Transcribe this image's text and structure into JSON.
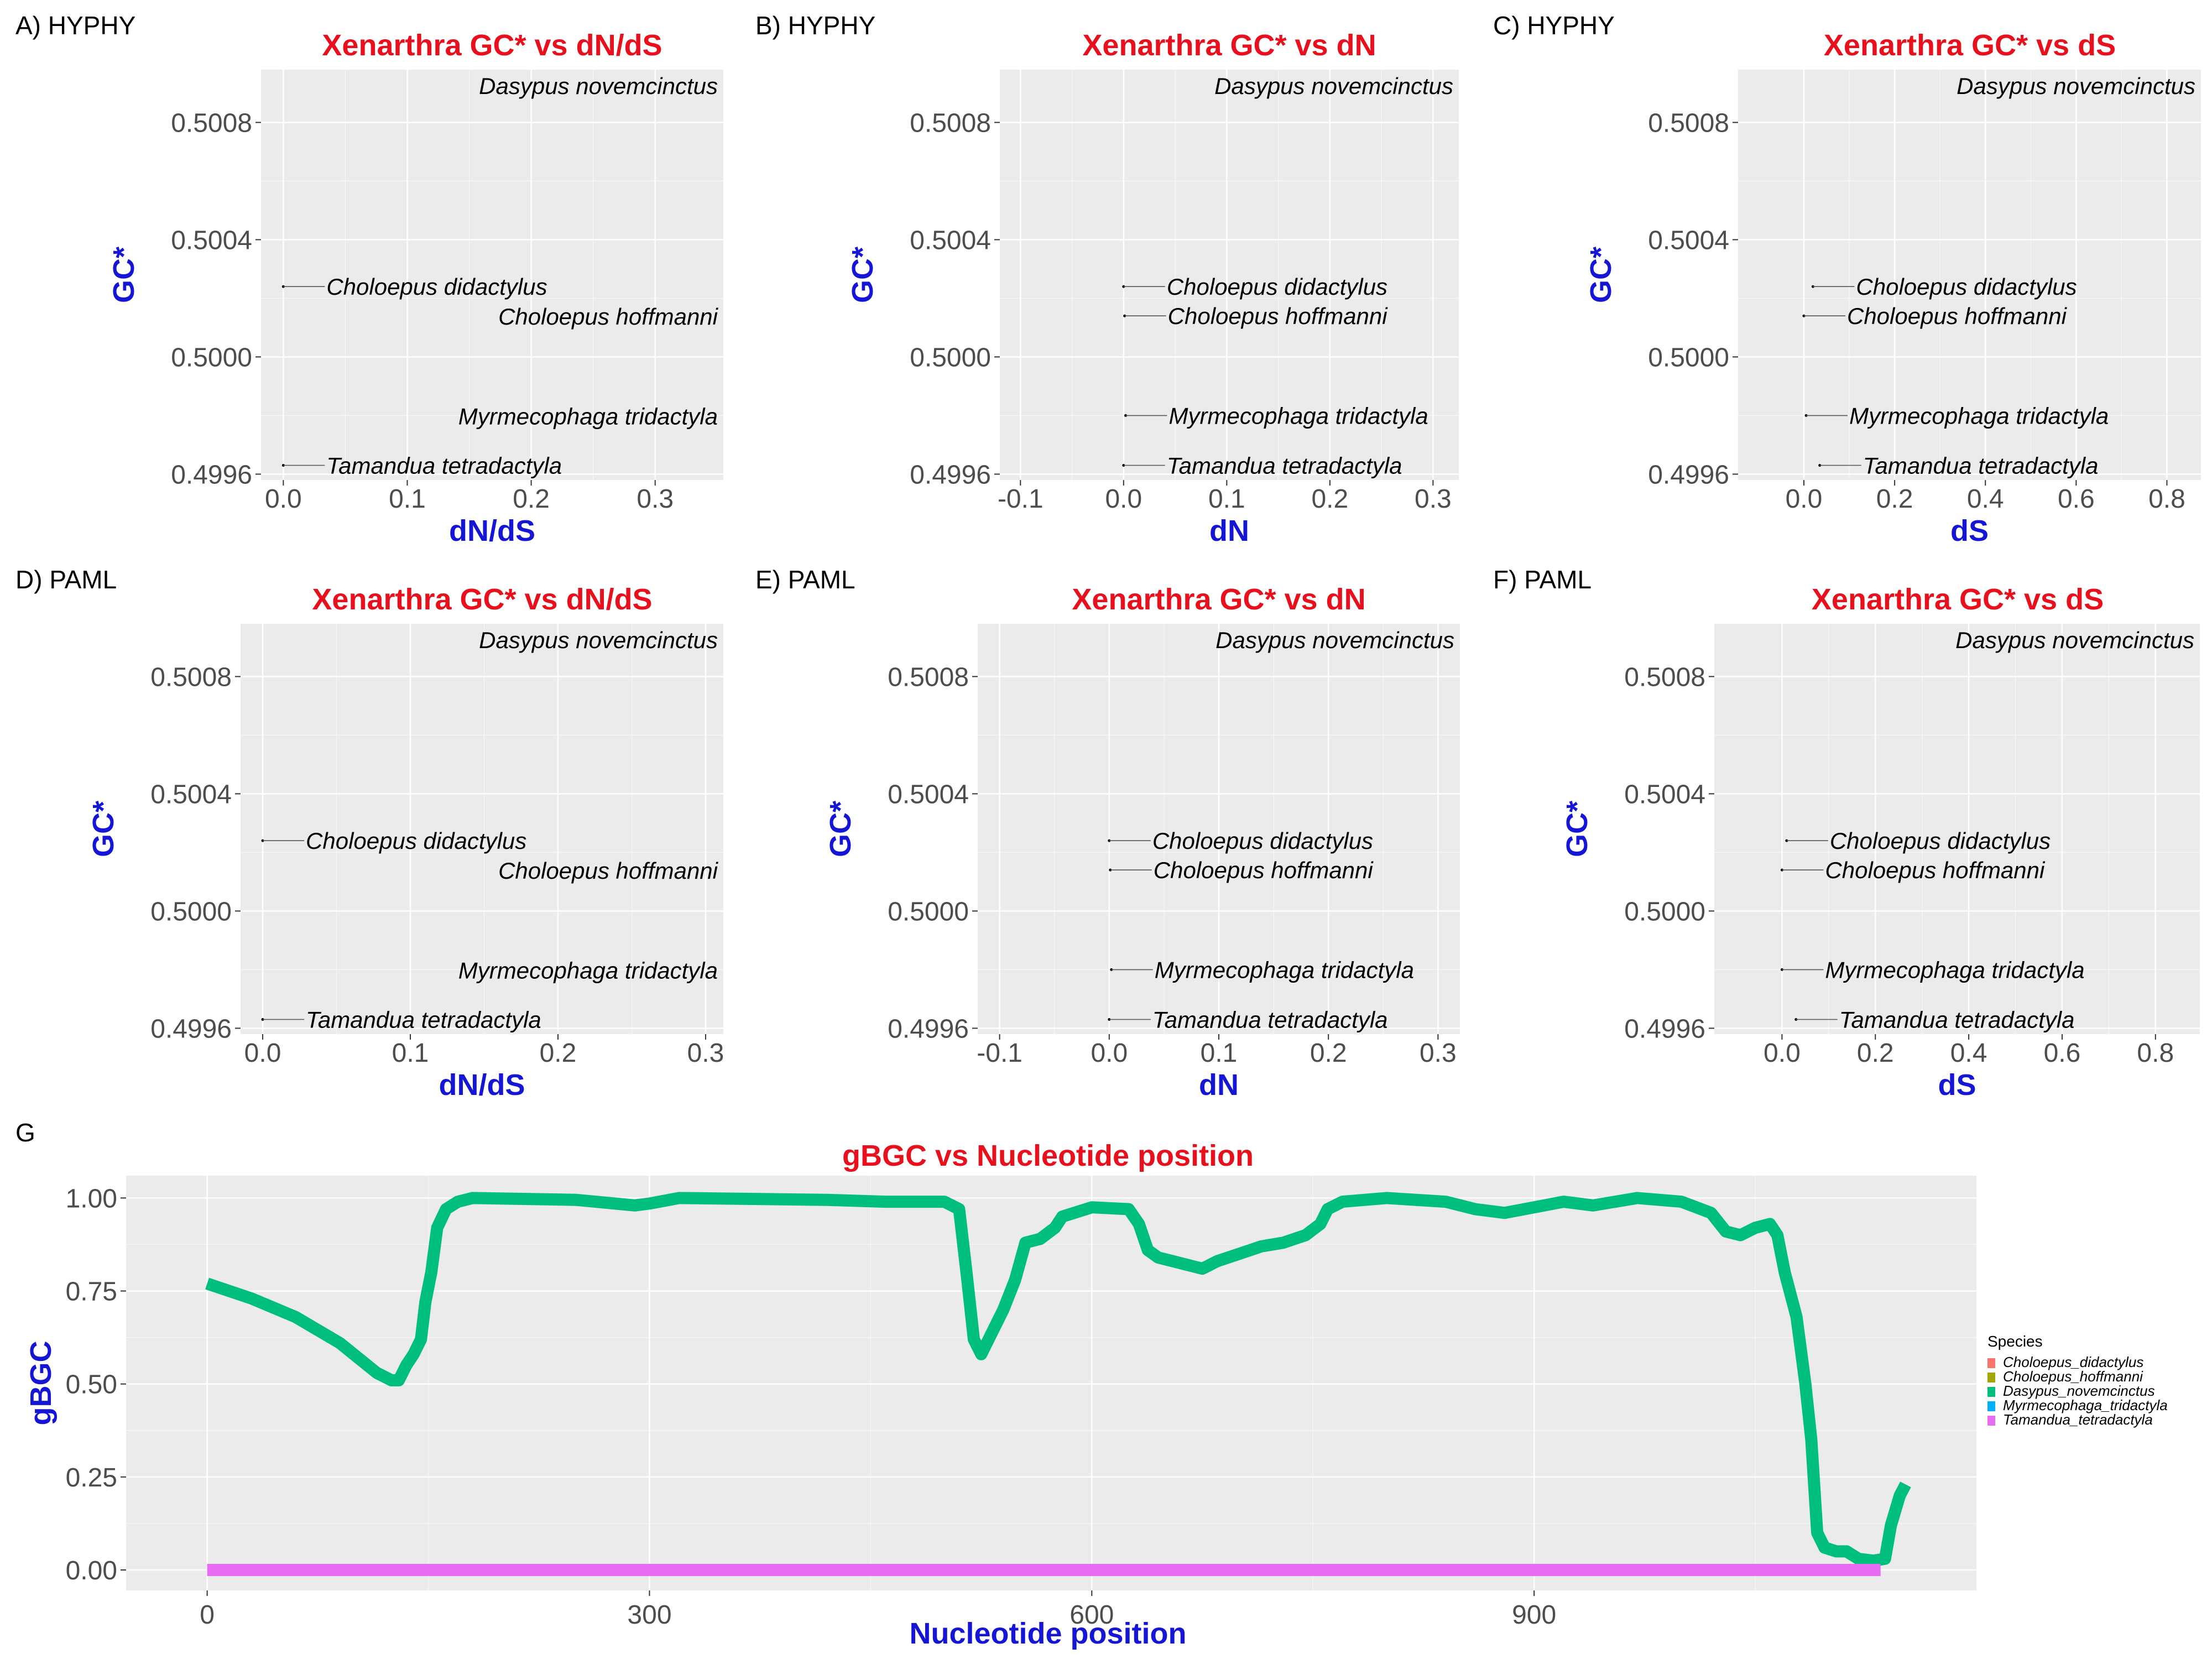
{
  "colors": {
    "panel_bg": "#ebebeb",
    "grid": "#ffffff",
    "title": "#e8101c",
    "axis_title": "#1515d6",
    "tick": "#4d4d4d",
    "species_italic": "#000000",
    "Choloepus_didactylus": "#F8766D",
    "Choloepus_hoffmanni": "#A3A500",
    "Dasypus_novemcinctus": "#00BF7D",
    "Myrmecophaga_tridactyla": "#00B0F6",
    "Tamandua_tetradactyla": "#E76BF3"
  },
  "chart_data": [
    {
      "tag": "A) HYPHY",
      "type": "scatter",
      "title": "Xenarthra GC* vs dN/dS",
      "xlabel": "dN/dS",
      "ylabel": "GC*",
      "xlim": [
        -0.018,
        0.355
      ],
      "ylim": [
        0.49958,
        0.50098
      ],
      "xticks": [
        0.0,
        0.1,
        0.2,
        0.3
      ],
      "xtick_labels": [
        "0.0",
        "0.1",
        "0.2",
        "0.3"
      ],
      "yticks": [
        0.4996,
        0.5,
        0.5004,
        0.5008
      ],
      "ytick_labels": [
        "0.4996",
        "0.5000",
        "0.5004",
        "0.5008"
      ],
      "points": [
        {
          "label": "Dasypus novemcinctus",
          "x": null,
          "y": null
        },
        {
          "label": "Choloepus didactylus",
          "x": 0.0,
          "y": 0.50024
        },
        {
          "label": "Choloepus hoffmanni",
          "x": null,
          "y": null
        },
        {
          "label": "Myrmecophaga tridactyla",
          "x": null,
          "y": null
        },
        {
          "label": "Tamandua tetradactyla",
          "x": 0.0,
          "y": 0.49963
        }
      ]
    },
    {
      "tag": "B) HYPHY",
      "type": "scatter",
      "title": "Xenarthra GC* vs dN",
      "xlabel": "dN",
      "ylabel": "GC*",
      "xlim": [
        -0.12,
        0.325
      ],
      "ylim": [
        0.49958,
        0.50098
      ],
      "xticks": [
        -0.1,
        0.0,
        0.1,
        0.2,
        0.3
      ],
      "xtick_labels": [
        "-0.1",
        "0.0",
        "0.1",
        "0.2",
        "0.3"
      ],
      "yticks": [
        0.4996,
        0.5,
        0.5004,
        0.5008
      ],
      "ytick_labels": [
        "0.4996",
        "0.5000",
        "0.5004",
        "0.5008"
      ],
      "points": [
        {
          "label": "Dasypus novemcinctus",
          "x": null,
          "y": null
        },
        {
          "label": "Choloepus didactylus",
          "x": 0.0,
          "y": 0.50024
        },
        {
          "label": "Choloepus hoffmanni",
          "x": 0.001,
          "y": 0.50014
        },
        {
          "label": "Myrmecophaga tridactyla",
          "x": 0.002,
          "y": 0.4998
        },
        {
          "label": "Tamandua tetradactyla",
          "x": 0.0,
          "y": 0.49963
        }
      ]
    },
    {
      "tag": "C) HYPHY",
      "type": "scatter",
      "title": "Xenarthra GC* vs dS",
      "xlabel": "dS",
      "ylabel": "GC*",
      "xlim": [
        -0.145,
        0.875
      ],
      "ylim": [
        0.49958,
        0.50098
      ],
      "xticks": [
        0.0,
        0.2,
        0.4,
        0.6,
        0.8
      ],
      "xtick_labels": [
        "0.0",
        "0.2",
        "0.4",
        "0.6",
        "0.8"
      ],
      "yticks": [
        0.4996,
        0.5,
        0.5004,
        0.5008
      ],
      "ytick_labels": [
        "0.4996",
        "0.5000",
        "0.5004",
        "0.5008"
      ],
      "points": [
        {
          "label": "Dasypus novemcinctus",
          "x": null,
          "y": null
        },
        {
          "label": "Choloepus didactylus",
          "x": 0.02,
          "y": 0.50024
        },
        {
          "label": "Choloepus hoffmanni",
          "x": 0.0,
          "y": 0.50014
        },
        {
          "label": "Myrmecophaga tridactyla",
          "x": 0.005,
          "y": 0.4998
        },
        {
          "label": "Tamandua tetradactyla",
          "x": 0.035,
          "y": 0.49963
        }
      ]
    },
    {
      "tag": "D) PAML",
      "type": "scatter",
      "title": "Xenarthra GC* vs dN/dS",
      "xlabel": "dN/dS",
      "ylabel": "GC*",
      "xlim": [
        -0.015,
        0.312
      ],
      "ylim": [
        0.49958,
        0.50098
      ],
      "xticks": [
        0.0,
        0.1,
        0.2,
        0.3
      ],
      "xtick_labels": [
        "0.0",
        "0.1",
        "0.2",
        "0.3"
      ],
      "yticks": [
        0.4996,
        0.5,
        0.5004,
        0.5008
      ],
      "ytick_labels": [
        "0.4996",
        "0.5000",
        "0.5004",
        "0.5008"
      ],
      "points": [
        {
          "label": "Dasypus novemcinctus",
          "x": null,
          "y": null
        },
        {
          "label": "Choloepus didactylus",
          "x": 0.0,
          "y": 0.50024
        },
        {
          "label": "Choloepus hoffmanni",
          "x": null,
          "y": null
        },
        {
          "label": "Myrmecophaga tridactyla",
          "x": null,
          "y": null
        },
        {
          "label": "Tamandua tetradactyla",
          "x": 0.0,
          "y": 0.49963
        }
      ]
    },
    {
      "tag": "E) PAML",
      "type": "scatter",
      "title": "Xenarthra GC* vs dN",
      "xlabel": "dN",
      "ylabel": "GC*",
      "xlim": [
        -0.12,
        0.32
      ],
      "ylim": [
        0.49958,
        0.50098
      ],
      "xticks": [
        -0.1,
        0.0,
        0.1,
        0.2,
        0.3
      ],
      "xtick_labels": [
        "-0.1",
        "0.0",
        "0.1",
        "0.2",
        "0.3"
      ],
      "yticks": [
        0.4996,
        0.5,
        0.5004,
        0.5008
      ],
      "ytick_labels": [
        "0.4996",
        "0.5000",
        "0.5004",
        "0.5008"
      ],
      "points": [
        {
          "label": "Dasypus novemcinctus",
          "x": null,
          "y": null
        },
        {
          "label": "Choloepus didactylus",
          "x": 0.0,
          "y": 0.50024
        },
        {
          "label": "Choloepus hoffmanni",
          "x": 0.001,
          "y": 0.50014
        },
        {
          "label": "Myrmecophaga tridactyla",
          "x": 0.002,
          "y": 0.4998
        },
        {
          "label": "Tamandua tetradactyla",
          "x": 0.0,
          "y": 0.49963
        }
      ]
    },
    {
      "tag": "F) PAML",
      "type": "scatter",
      "title": "Xenarthra GC* vs dS",
      "xlabel": "dS",
      "ylabel": "GC*",
      "xlim": [
        -0.145,
        0.895
      ],
      "ylim": [
        0.49958,
        0.50098
      ],
      "xticks": [
        0.0,
        0.2,
        0.4,
        0.6,
        0.8
      ],
      "xtick_labels": [
        "0.0",
        "0.2",
        "0.4",
        "0.6",
        "0.8"
      ],
      "yticks": [
        0.4996,
        0.5,
        0.5004,
        0.5008
      ],
      "ytick_labels": [
        "0.4996",
        "0.5000",
        "0.5004",
        "0.5008"
      ],
      "points": [
        {
          "label": "Dasypus novemcinctus",
          "x": null,
          "y": null
        },
        {
          "label": "Choloepus didactylus",
          "x": 0.01,
          "y": 0.50024
        },
        {
          "label": "Choloepus hoffmanni",
          "x": 0.0,
          "y": 0.50014
        },
        {
          "label": "Myrmecophaga tridactyla",
          "x": 0.0,
          "y": 0.4998
        },
        {
          "label": "Tamandua tetradactyla",
          "x": 0.03,
          "y": 0.49963
        }
      ]
    },
    {
      "tag": "G",
      "type": "line",
      "title": "gBGC vs Nucleotide position",
      "xlabel": "Nucleotide position",
      "ylabel": "gBGC",
      "xlim": [
        -55,
        1200
      ],
      "ylim": [
        -0.055,
        1.06
      ],
      "xticks": [
        0,
        300,
        600,
        900
      ],
      "xtick_labels": [
        "0",
        "300",
        "600",
        "900"
      ],
      "yticks": [
        0.0,
        0.25,
        0.5,
        0.75,
        1.0
      ],
      "ytick_labels": [
        "0.00",
        "0.25",
        "0.50",
        "0.75",
        "1.00"
      ],
      "legend": {
        "title": "Species",
        "position": "right",
        "entries": [
          "Choloepus_didactylus",
          "Choloepus_hoffmanni",
          "Dasypus_novemcinctus",
          "Myrmecophaga_tridactyla",
          "Tamandua_tetradactyla"
        ]
      },
      "series": [
        {
          "name": "Dasypus_novemcinctus",
          "points": [
            [
              0,
              0.77
            ],
            [
              30,
              0.73
            ],
            [
              60,
              0.68
            ],
            [
              90,
              0.61
            ],
            [
              115,
              0.53
            ],
            [
              125,
              0.51
            ],
            [
              130,
              0.51
            ],
            [
              135,
              0.55
            ],
            [
              140,
              0.58
            ],
            [
              145,
              0.62
            ],
            [
              148,
              0.72
            ],
            [
              152,
              0.8
            ],
            [
              156,
              0.92
            ],
            [
              162,
              0.97
            ],
            [
              170,
              0.99
            ],
            [
              180,
              1.0
            ],
            [
              250,
              0.995
            ],
            [
              290,
              0.98
            ],
            [
              300,
              0.985
            ],
            [
              320,
              1.0
            ],
            [
              420,
              0.995
            ],
            [
              460,
              0.99
            ],
            [
              500,
              0.99
            ],
            [
              510,
              0.97
            ],
            [
              515,
              0.8
            ],
            [
              520,
              0.62
            ],
            [
              525,
              0.58
            ],
            [
              530,
              0.62
            ],
            [
              540,
              0.7
            ],
            [
              548,
              0.78
            ],
            [
              555,
              0.88
            ],
            [
              565,
              0.89
            ],
            [
              575,
              0.92
            ],
            [
              580,
              0.95
            ],
            [
              600,
              0.975
            ],
            [
              625,
              0.97
            ],
            [
              632,
              0.93
            ],
            [
              638,
              0.86
            ],
            [
              645,
              0.84
            ],
            [
              655,
              0.83
            ],
            [
              665,
              0.82
            ],
            [
              675,
              0.81
            ],
            [
              685,
              0.83
            ],
            [
              700,
              0.85
            ],
            [
              715,
              0.87
            ],
            [
              730,
              0.88
            ],
            [
              745,
              0.9
            ],
            [
              755,
              0.93
            ],
            [
              760,
              0.97
            ],
            [
              770,
              0.99
            ],
            [
              800,
              1.0
            ],
            [
              840,
              0.99
            ],
            [
              860,
              0.97
            ],
            [
              880,
              0.96
            ],
            [
              900,
              0.975
            ],
            [
              920,
              0.99
            ],
            [
              940,
              0.98
            ],
            [
              970,
              1.0
            ],
            [
              1000,
              0.99
            ],
            [
              1020,
              0.96
            ],
            [
              1030,
              0.91
            ],
            [
              1040,
              0.9
            ],
            [
              1050,
              0.92
            ],
            [
              1060,
              0.93
            ],
            [
              1065,
              0.9
            ],
            [
              1070,
              0.8
            ],
            [
              1078,
              0.68
            ],
            [
              1084,
              0.5
            ],
            [
              1088,
              0.35
            ],
            [
              1092,
              0.1
            ],
            [
              1097,
              0.06
            ],
            [
              1105,
              0.05
            ],
            [
              1112,
              0.05
            ],
            [
              1120,
              0.03
            ],
            [
              1130,
              0.025
            ],
            [
              1138,
              0.03
            ],
            [
              1142,
              0.12
            ],
            [
              1148,
              0.2
            ],
            [
              1152,
              0.23
            ]
          ]
        },
        {
          "name": "Tamandua_tetradactyla",
          "points": [
            [
              0,
              0.0
            ],
            [
              1135,
              0.0
            ]
          ]
        }
      ]
    }
  ]
}
